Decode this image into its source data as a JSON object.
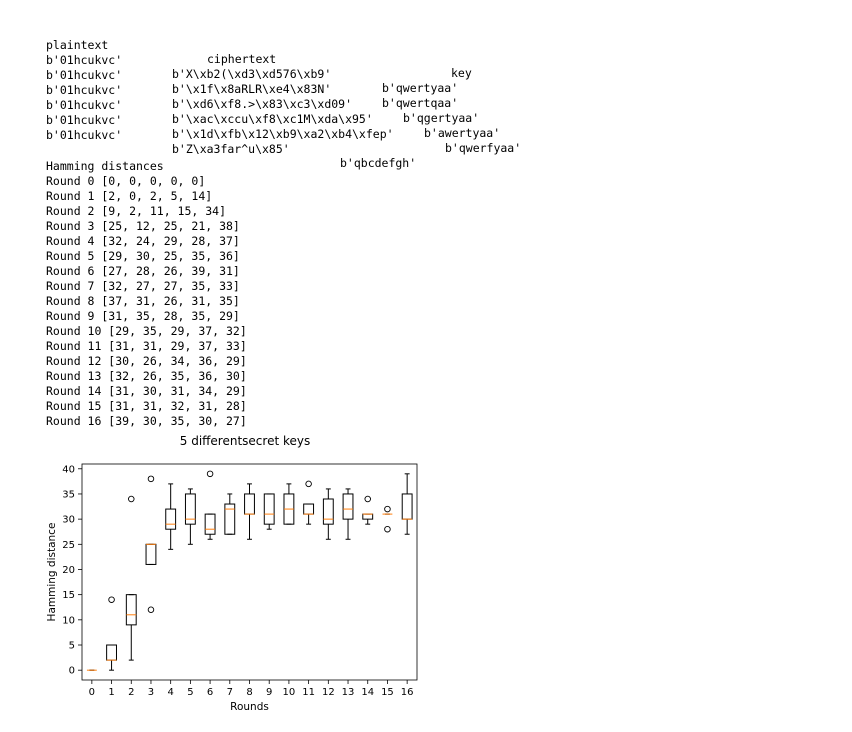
{
  "table": {
    "headers": {
      "plaintext": "plaintext",
      "ciphertext": "ciphertext",
      "key": "key"
    },
    "rows": [
      {
        "plaintext": "b'01hcukvc'",
        "ciphertext": "b'X\\xb2(\\xd3\\xd576\\xb9'",
        "key": "b'qwertyaa'"
      },
      {
        "plaintext": "b'01hcukvc'",
        "ciphertext": "b'\\x1f\\x8aRLR\\xe4\\x83N'",
        "key": "b'qwertqaa'"
      },
      {
        "plaintext": "b'01hcukvc'",
        "ciphertext": "b'\\xd6\\xf8.>\\x83\\xc3\\xd09'",
        "key": "b'qgertyaa'"
      },
      {
        "plaintext": "b'01hcukvc'",
        "ciphertext": "b'\\xac\\xccu\\xf8\\xc1M\\xda\\x95'",
        "key": "b'awertyaa'"
      },
      {
        "plaintext": "b'01hcukvc'",
        "ciphertext": "b'\\x1d\\xfb\\x12\\xb9\\xa2\\xb4\\xfep'",
        "key": "b'qwerfyaa'"
      },
      {
        "plaintext": "b'01hcukvc'",
        "ciphertext": "b'Z\\xa3far^u\\x85'",
        "key": "b'qbcdefgh'"
      }
    ]
  },
  "hamming": {
    "title": "Hamming distances",
    "rounds": [
      "Round 0 [0, 0, 0, 0, 0]",
      "Round 1 [2, 0, 2, 5, 14]",
      "Round 2 [9, 2, 11, 15, 34]",
      "Round 3 [25, 12, 25, 21, 38]",
      "Round 4 [32, 24, 29, 28, 37]",
      "Round 5 [29, 30, 25, 35, 36]",
      "Round 6 [27, 28, 26, 39, 31]",
      "Round 7 [32, 27, 27, 35, 33]",
      "Round 8 [37, 31, 26, 31, 35]",
      "Round 9 [31, 35, 28, 35, 29]",
      "Round 10 [29, 35, 29, 37, 32]",
      "Round 11 [31, 31, 29, 37, 33]",
      "Round 12 [30, 26, 34, 36, 29]",
      "Round 13 [32, 26, 35, 36, 30]",
      "Round 14 [31, 30, 31, 34, 29]",
      "Round 15 [31, 31, 32, 31, 28]",
      "Round 16 [39, 30, 35, 30, 27]"
    ]
  },
  "chart_data": {
    "type": "boxplot",
    "title": "5 differentsecret keys",
    "xlabel": "Rounds",
    "ylabel": "Hamming distance",
    "categories": [
      0,
      1,
      2,
      3,
      4,
      5,
      6,
      7,
      8,
      9,
      10,
      11,
      12,
      13,
      14,
      15,
      16
    ],
    "ylim": [
      -1.95,
      40.95
    ],
    "yticks": [
      0,
      5,
      10,
      15,
      20,
      25,
      30,
      35,
      40
    ],
    "series": [
      [
        0,
        0,
        0,
        0,
        0
      ],
      [
        2,
        0,
        2,
        5,
        14
      ],
      [
        9,
        2,
        11,
        15,
        34
      ],
      [
        25,
        12,
        25,
        21,
        38
      ],
      [
        32,
        24,
        29,
        28,
        37
      ],
      [
        29,
        30,
        25,
        35,
        36
      ],
      [
        27,
        28,
        26,
        39,
        31
      ],
      [
        32,
        27,
        27,
        35,
        33
      ],
      [
        37,
        31,
        26,
        31,
        35
      ],
      [
        31,
        35,
        28,
        35,
        29
      ],
      [
        29,
        35,
        29,
        37,
        32
      ],
      [
        31,
        31,
        29,
        37,
        33
      ],
      [
        30,
        26,
        34,
        36,
        29
      ],
      [
        32,
        26,
        35,
        36,
        30
      ],
      [
        31,
        30,
        31,
        34,
        29
      ],
      [
        31,
        31,
        32,
        31,
        28
      ],
      [
        39,
        30,
        35,
        30,
        27
      ]
    ],
    "grid": false,
    "colors": {
      "box": "#000000",
      "median": "#ff7f0e",
      "flier": "#000000"
    }
  }
}
